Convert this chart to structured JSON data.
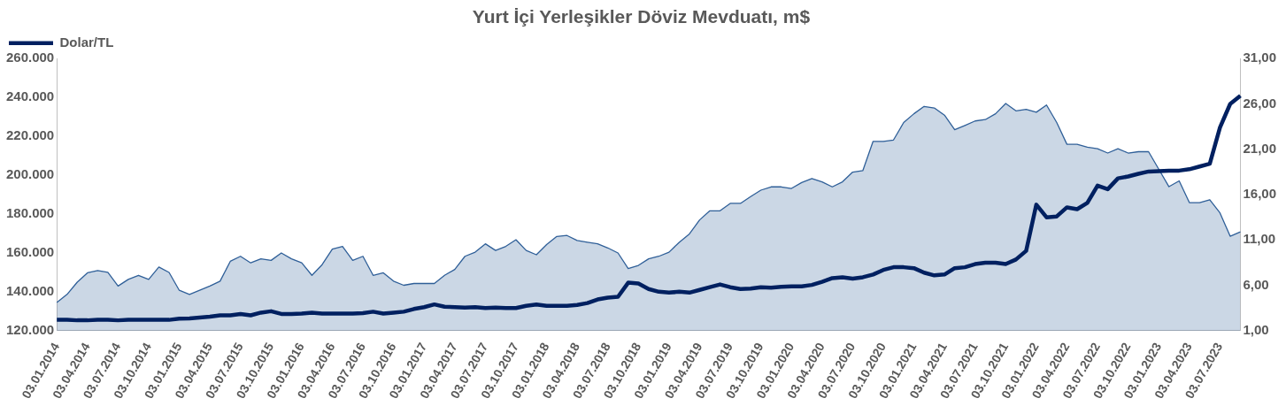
{
  "chart_data": {
    "type": "line",
    "title": "Yurt İçi Yerleşikler Döviz Mevduatı, m$",
    "categories": [
      "03.01.2014",
      null,
      null,
      "03.04.2014",
      null,
      null,
      "03.07.2014",
      null,
      null,
      "03.10.2014",
      null,
      null,
      "03.01.2015",
      null,
      null,
      "03.04.2015",
      null,
      null,
      "03.07.2015",
      null,
      null,
      "03.10.2015",
      null,
      null,
      "03.01.2016",
      null,
      null,
      "03.04.2016",
      null,
      null,
      "03.07.2016",
      null,
      null,
      "03.10.2016",
      null,
      null,
      "03.01.2017",
      null,
      null,
      "03.04.2017",
      null,
      null,
      "03.07.2017",
      null,
      null,
      "03.10.2017",
      null,
      null,
      "03.01.2018",
      null,
      null,
      "03.04.2018",
      null,
      null,
      "03.07.2018",
      null,
      null,
      "03.10.2018",
      null,
      null,
      "03.01.2019",
      null,
      null,
      "03.04.2019",
      null,
      null,
      "03.07.2019",
      null,
      null,
      "03.10.2019",
      null,
      null,
      "03.01.2020",
      null,
      null,
      "03.04.2020",
      null,
      null,
      "03.07.2020",
      null,
      null,
      "03.10.2020",
      null,
      null,
      "03.01.2021",
      null,
      null,
      "03.04.2021",
      null,
      null,
      "03.07.2021",
      null,
      null,
      "03.10.2021",
      null,
      null,
      "03.01.2022",
      null,
      null,
      "03.04.2022",
      null,
      null,
      "03.07.2022",
      null,
      null,
      "03.10.2022",
      null,
      null,
      "03.01.2023",
      null,
      null,
      "03.04.2023",
      null,
      null,
      "03.07.2023",
      null,
      null
    ],
    "series": [
      {
        "type": "area",
        "color": "#2f5f98",
        "values": [
          134500,
          138700,
          145000,
          149800,
          151000,
          150000,
          143000,
          146400,
          148500,
          146400,
          152800,
          150000,
          140800,
          138700,
          140800,
          143000,
          145500,
          155700,
          158300,
          154900,
          157000,
          156200,
          160000,
          157000,
          154900,
          148500,
          154000,
          162000,
          163400,
          156200,
          158300,
          148500,
          149800,
          145500,
          143400,
          144300,
          144300,
          144300,
          148500,
          151500,
          158300,
          160400,
          164700,
          161300,
          163400,
          166800,
          161300,
          159100,
          164300,
          168500,
          169000,
          166400,
          165500,
          164700,
          162600,
          160000,
          152000,
          153600,
          157000,
          158300,
          160400,
          165500,
          169800,
          177000,
          181700,
          181700,
          185500,
          185500,
          189000,
          192300,
          194000,
          194000,
          193200,
          196200,
          198300,
          196600,
          194000,
          196600,
          201600,
          202400,
          217400,
          217400,
          218100,
          227100,
          231600,
          235400,
          234600,
          230900,
          223400,
          225600,
          227900,
          228600,
          231600,
          236900,
          233100,
          233900,
          232400,
          236100,
          227100,
          215900,
          215900,
          214400,
          213600,
          211400,
          213600,
          211400,
          212100,
          212100,
          203100,
          194100,
          197100,
          185900,
          185900,
          187400,
          180600,
          168600,
          170900
        ]
      },
      {
        "name": "Dolar/TL",
        "axis": "y2",
        "color": "#002060",
        "values": [
          2.2,
          2.2,
          2.15,
          2.15,
          2.2,
          2.2,
          2.15,
          2.2,
          2.2,
          2.2,
          2.2,
          2.2,
          2.34,
          2.35,
          2.46,
          2.55,
          2.7,
          2.7,
          2.85,
          2.7,
          3.0,
          3.15,
          2.85,
          2.85,
          2.9,
          3.0,
          2.9,
          2.9,
          2.9,
          2.9,
          2.95,
          3.1,
          2.9,
          3.0,
          3.1,
          3.4,
          3.6,
          3.9,
          3.65,
          3.6,
          3.55,
          3.6,
          3.5,
          3.55,
          3.5,
          3.5,
          3.75,
          3.9,
          3.75,
          3.75,
          3.75,
          3.85,
          4.05,
          4.45,
          4.65,
          4.75,
          6.3,
          6.2,
          5.6,
          5.3,
          5.2,
          5.3,
          5.2,
          5.5,
          5.8,
          6.1,
          5.8,
          5.6,
          5.65,
          5.8,
          5.75,
          5.85,
          5.9,
          5.9,
          6.05,
          6.4,
          6.8,
          6.9,
          6.75,
          6.9,
          7.2,
          7.7,
          8.0,
          8.0,
          7.9,
          7.4,
          7.1,
          7.2,
          7.9,
          8.0,
          8.35,
          8.5,
          8.5,
          8.35,
          8.85,
          9.8,
          14.9,
          13.5,
          13.6,
          14.6,
          14.4,
          15.1,
          17.0,
          16.6,
          17.8,
          18.0,
          18.3,
          18.55,
          18.6,
          18.65,
          18.65,
          18.8,
          19.1,
          19.4,
          23.4,
          26.0,
          26.9
        ]
      }
    ],
    "ylim": [
      120000,
      260000
    ],
    "yticks": [
      {
        "value": 120000,
        "label": "120.000"
      },
      {
        "value": 140000,
        "label": "140.000"
      },
      {
        "value": 160000,
        "label": "160.000"
      },
      {
        "value": 180000,
        "label": "180.000"
      },
      {
        "value": 200000,
        "label": "200.000"
      },
      {
        "value": 220000,
        "label": "220.000"
      },
      {
        "value": 240000,
        "label": "240.000"
      },
      {
        "value": 260000,
        "label": "260.000"
      }
    ],
    "y2lim": [
      1,
      31
    ],
    "y2ticks": [
      {
        "value": 1,
        "label": "1,00"
      },
      {
        "value": 6,
        "label": "6,00"
      },
      {
        "value": 11,
        "label": "11,00"
      },
      {
        "value": 16,
        "label": "16,00"
      },
      {
        "value": 21,
        "label": "21,00"
      },
      {
        "value": 26,
        "label": "26,00"
      },
      {
        "value": 31,
        "label": "31,00"
      }
    ],
    "legend": "top left",
    "grid": false,
    "marker": "none"
  }
}
